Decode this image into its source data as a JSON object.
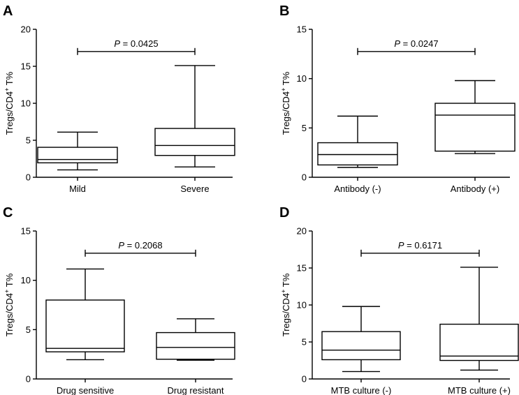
{
  "chart_data": [
    {
      "panel": "A",
      "type": "boxplot",
      "ylabel": "Tregs/CD4+ T%",
      "ylim": [
        0,
        20
      ],
      "yticks": [
        0,
        5,
        10,
        15,
        20
      ],
      "categories": [
        "Mild",
        "Severe"
      ],
      "boxes": [
        {
          "min": 1.0,
          "q1": 1.95,
          "median": 2.4,
          "q3": 4.05,
          "max": 6.1
        },
        {
          "min": 1.4,
          "q1": 2.95,
          "median": 4.3,
          "q3": 6.6,
          "max": 15.1
        }
      ],
      "p_value": "= 0.0425",
      "p_symbol": "P",
      "bracket_y": 17.0
    },
    {
      "panel": "B",
      "type": "boxplot",
      "ylabel": "Tregs/CD4+ T%",
      "ylim": [
        0,
        15
      ],
      "yticks": [
        0,
        5,
        10,
        15
      ],
      "categories": [
        "Antibody (-)",
        "Antibody (+)"
      ],
      "boxes": [
        {
          "min": 1.0,
          "q1": 1.25,
          "median": 2.3,
          "q3": 3.5,
          "max": 6.2
        },
        {
          "min": 2.4,
          "q1": 2.65,
          "median": 6.3,
          "q3": 7.5,
          "max": 9.8
        }
      ],
      "p_value": "= 0.0247",
      "p_symbol": "P",
      "bracket_y": 12.75
    },
    {
      "panel": "C",
      "type": "boxplot",
      "ylabel": "Tregs/CD4+ T%",
      "ylim": [
        0,
        15
      ],
      "yticks": [
        0,
        5,
        10,
        15
      ],
      "categories": [
        "Drug sensitive",
        "Drug resistant"
      ],
      "boxes": [
        {
          "min": 1.95,
          "q1": 2.75,
          "median": 3.1,
          "q3": 8.0,
          "max": 11.15
        },
        {
          "min": 1.9,
          "q1": 2.0,
          "median": 3.2,
          "q3": 4.7,
          "max": 6.1
        }
      ],
      "p_value": "= 0.2068",
      "p_symbol": "P",
      "bracket_y": 12.75
    },
    {
      "panel": "D",
      "type": "boxplot",
      "ylabel": "Tregs/CD4+ T%",
      "ylim": [
        0,
        20
      ],
      "yticks": [
        0,
        5,
        10,
        15,
        20
      ],
      "categories": [
        "MTB culture (-)",
        "MTB culture (+)"
      ],
      "boxes": [
        {
          "min": 1.0,
          "q1": 2.6,
          "median": 3.9,
          "q3": 6.4,
          "max": 9.8
        },
        {
          "min": 1.2,
          "q1": 2.5,
          "median": 3.1,
          "q3": 7.4,
          "max": 15.1
        }
      ],
      "p_value": "= 0.6171",
      "p_symbol": "P",
      "bracket_y": 17.0
    }
  ]
}
